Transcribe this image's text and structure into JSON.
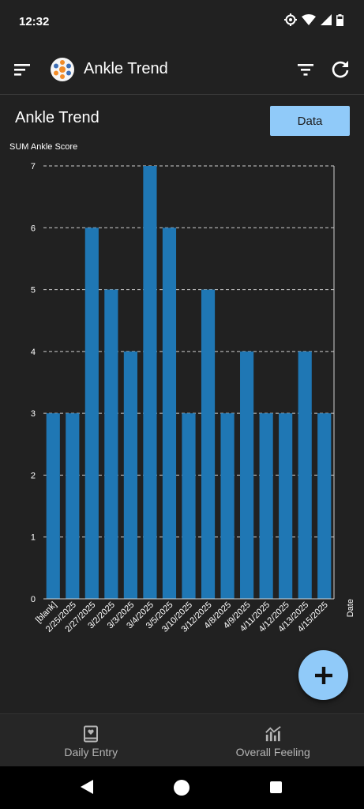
{
  "status_bar": {
    "time": "12:32"
  },
  "app_bar": {
    "title": "Ankle Trend"
  },
  "chart_header": {
    "title": "Ankle Trend",
    "data_button_label": "Data"
  },
  "chart_data": {
    "type": "bar",
    "ylabel": "SUM Ankle Score",
    "xlabel": "Date",
    "ylim": [
      0,
      7
    ],
    "yticks": [
      0,
      1,
      2,
      3,
      4,
      5,
      6,
      7
    ],
    "grid": true,
    "categories": [
      "[blank]",
      "2/25/2025",
      "2/27/2025",
      "3/2/2025",
      "3/3/2025",
      "3/4/2025",
      "3/5/2025",
      "3/10/2025",
      "3/12/2025",
      "4/8/2025",
      "4/9/2025",
      "4/11/2025",
      "4/12/2025",
      "4/13/2025",
      "4/15/2025"
    ],
    "values": [
      3,
      3,
      6,
      5,
      4,
      7,
      6,
      3,
      5,
      3,
      4,
      3,
      3,
      4,
      3
    ],
    "bar_color": "#1f77b4"
  },
  "bottom_nav": {
    "items": [
      {
        "label": "Daily Entry",
        "icon": "book-heart-icon"
      },
      {
        "label": "Overall Feeling",
        "icon": "chart-trend-icon"
      }
    ]
  }
}
